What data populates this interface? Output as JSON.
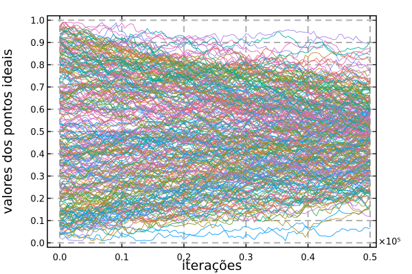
{
  "chart_data": {
    "type": "line",
    "title": "",
    "xlabel": "iterações",
    "ylabel": "valores dos pontos ideais",
    "x_multiplier_label": "×10⁵",
    "xlim": [
      -0.02,
      0.51
    ],
    "ylim": [
      -0.02,
      1.02
    ],
    "x_ticks": [
      0.0,
      0.1,
      0.2,
      0.3,
      0.4,
      0.5
    ],
    "x_tick_labels": [
      "0.0",
      "0.1",
      "0.2",
      "0.3",
      "0.4",
      "0.5"
    ],
    "y_ticks": [
      0.0,
      0.1,
      0.2,
      0.3,
      0.4,
      0.5,
      0.6,
      0.7,
      0.8,
      0.9,
      1.0
    ],
    "y_tick_labels": [
      "0.0",
      "0.1",
      "0.2",
      "0.3",
      "0.4",
      "0.5",
      "0.6",
      "0.7",
      "0.8",
      "0.9",
      "1.0"
    ],
    "grid": true,
    "grid_style": "dashed",
    "legend": "none",
    "series_description": "many random-walk trajectories starting uniformly in [0,1] and contracting toward ~0.45 by x=0.5",
    "series_count": 300,
    "x_range_data": [
      0.0,
      0.5
    ],
    "start_range": [
      0.02,
      0.98
    ],
    "end_range": [
      0.2,
      0.85
    ],
    "palette": [
      "#009af9",
      "#e26f46",
      "#3da44d",
      "#c271d2",
      "#ac8e18",
      "#00a9ad",
      "#ed5e93",
      "#c68225",
      "#00a98d",
      "#8e971d",
      "#00a9cd",
      "#9b7fe9",
      "#618df6",
      "#f05f73",
      "#dd64b5",
      "#6b9d22"
    ],
    "frame_color": "#000000",
    "grid_color": "#b0b0b0"
  }
}
